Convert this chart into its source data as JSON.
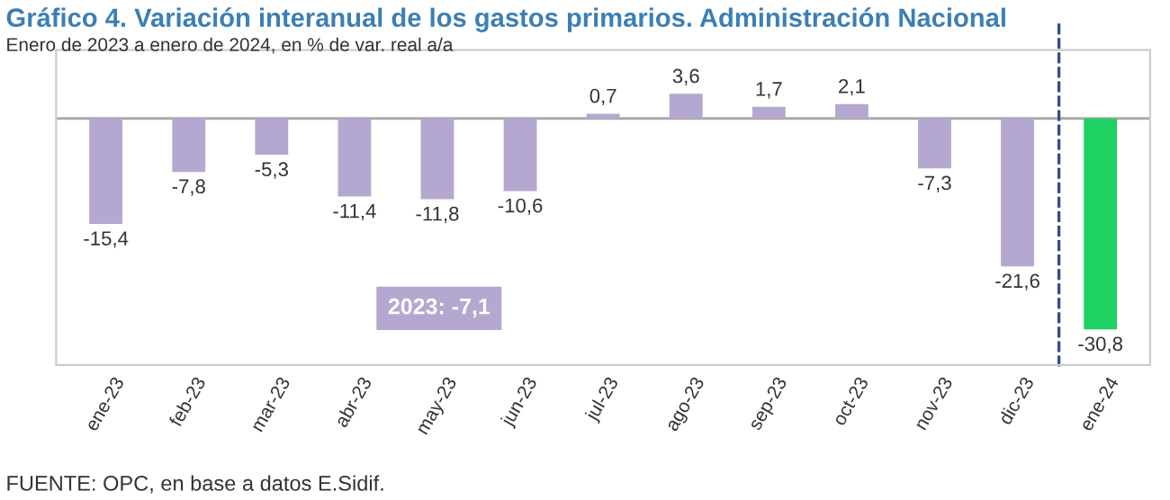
{
  "chart_data": {
    "type": "bar",
    "title": "Gráfico 4. Variación interanual de los gastos primarios. Administración Nacional",
    "subtitle": "Enero de 2023 a enero de 2024, en % de var. real a/a",
    "categories": [
      "ene-23",
      "feb-23",
      "mar-23",
      "abr-23",
      "may-23",
      "jun-23",
      "jul-23",
      "ago-23",
      "sep-23",
      "oct-23",
      "nov-23",
      "dic-23",
      "ene-24"
    ],
    "values": [
      -15.4,
      -7.8,
      -5.3,
      -11.4,
      -11.8,
      -10.6,
      0.7,
      3.6,
      1.7,
      2.1,
      -7.3,
      -21.6,
      -30.8
    ],
    "colors": [
      "#b4a7d0",
      "#b4a7d0",
      "#b4a7d0",
      "#b4a7d0",
      "#b4a7d0",
      "#b4a7d0",
      "#b4a7d0",
      "#b4a7d0",
      "#b4a7d0",
      "#b4a7d0",
      "#b4a7d0",
      "#b4a7d0",
      "#1fd162"
    ],
    "value_labels": [
      "-15,4",
      "-7,8",
      "-5,3",
      "-11,4",
      "-11,8",
      "-10,6",
      "0,7",
      "3,6",
      "1,7",
      "2,1",
      "-7,3",
      "-21,6",
      "-30,8"
    ],
    "ylim": [
      -36,
      10
    ],
    "tick_labels": "x",
    "grid": false,
    "legend": false,
    "annotations": [
      "2023: -7,1",
      "FUENTE: OPC, en base a datos E.Sidif."
    ]
  }
}
